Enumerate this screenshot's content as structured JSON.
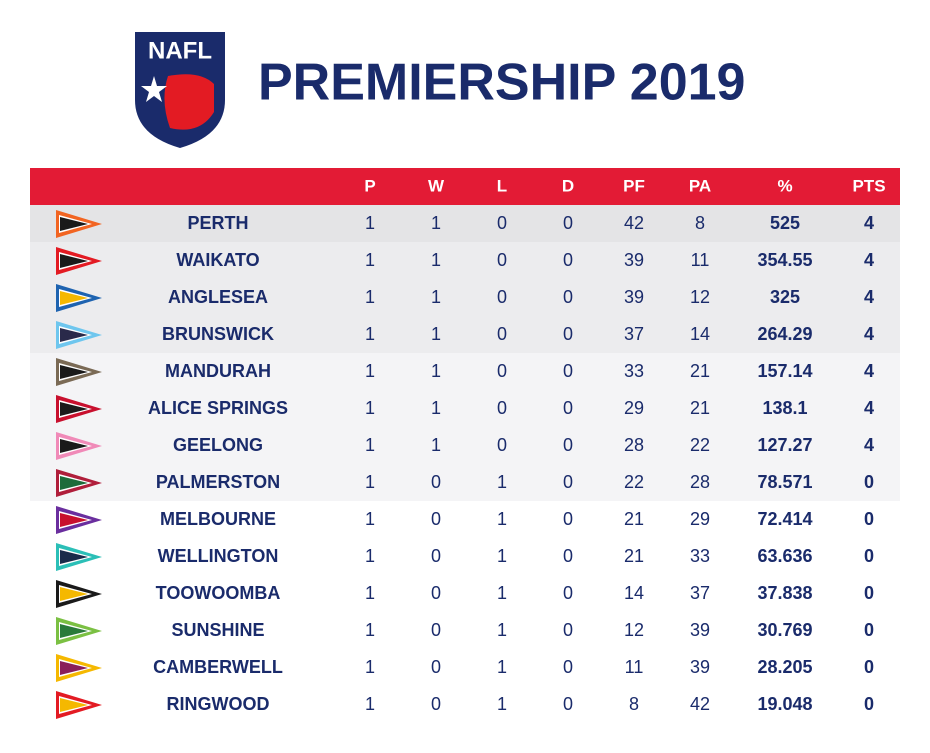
{
  "header": {
    "logo_text": "NAFL",
    "title": "PREMIERSHIP 2019"
  },
  "table": {
    "columns": [
      "P",
      "W",
      "L",
      "D",
      "PF",
      "PA",
      "%",
      "PTS"
    ],
    "rows": [
      [
        "PERTH",
        1,
        1,
        0,
        0,
        42,
        8,
        525,
        4
      ],
      [
        "WAIKATO",
        1,
        1,
        0,
        0,
        39,
        11,
        354.55,
        4
      ],
      [
        "ANGLESEA",
        1,
        1,
        0,
        0,
        39,
        12,
        325,
        4
      ],
      [
        "BRUNSWICK",
        1,
        1,
        0,
        0,
        37,
        14,
        264.29,
        4
      ],
      [
        "MANDURAH",
        1,
        1,
        0,
        0,
        33,
        21,
        157.14,
        4
      ],
      [
        "ALICE SPRINGS",
        1,
        1,
        0,
        0,
        29,
        21,
        138.1,
        4
      ],
      [
        "GEELONG",
        1,
        1,
        0,
        0,
        28,
        22,
        127.27,
        4
      ],
      [
        "PALMERSTON",
        1,
        0,
        1,
        0,
        22,
        28,
        78.571,
        0
      ],
      [
        "MELBOURNE",
        1,
        0,
        1,
        0,
        21,
        29,
        72.414,
        0
      ],
      [
        "WELLINGTON",
        1,
        0,
        1,
        0,
        21,
        33,
        63.636,
        0
      ],
      [
        "TOOWOOMBA",
        1,
        0,
        1,
        0,
        14,
        37,
        37.838,
        0
      ],
      [
        "SUNSHINE",
        1,
        0,
        1,
        0,
        12,
        39,
        30.769,
        0
      ],
      [
        "CAMBERWELL",
        1,
        0,
        1,
        0,
        11,
        39,
        28.205,
        0
      ],
      [
        "RINGWOOD",
        1,
        0,
        1,
        0,
        8,
        42,
        19.048,
        0
      ]
    ]
  }
}
